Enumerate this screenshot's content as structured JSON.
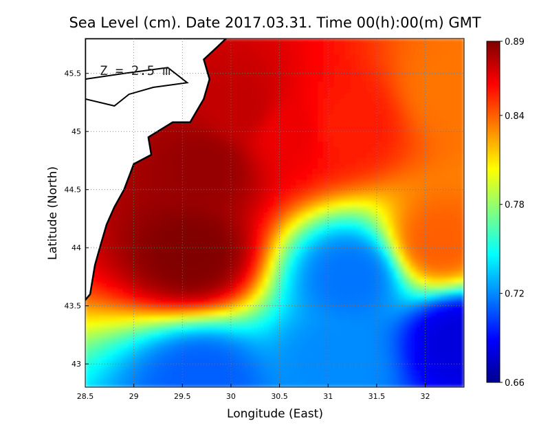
{
  "chart_data": {
    "type": "heatmap",
    "title": "Sea Level (cm). Date 2017.03.31. Time 00(h):00(m) GMT",
    "annotation": "Z = 2.5 m",
    "xlabel": "Longitude (East)",
    "ylabel": "Latitude (North)",
    "xlim": [
      28.5,
      32.4
    ],
    "ylim": [
      42.8,
      45.8
    ],
    "x_ticks": [
      "28.5",
      "29",
      "29.5",
      "30",
      "30.5",
      "31",
      "31.5",
      "32"
    ],
    "y_ticks": [
      "43",
      "43.5",
      "44",
      "44.5",
      "45",
      "45.5"
    ],
    "grid": true,
    "colorbar": {
      "min": 0.66,
      "max": 0.89,
      "ticks": [
        "0.89",
        "0.84",
        "0.78",
        "0.72",
        "0.66"
      ],
      "colors": [
        "#00008f",
        "#0000ff",
        "#0080ff",
        "#00ffff",
        "#80ff80",
        "#ffff00",
        "#ff8000",
        "#ff0000",
        "#800000"
      ]
    },
    "field_peaks": [
      {
        "x": 29.6,
        "y": 43.95,
        "value": 0.89
      },
      {
        "x": 29.75,
        "y": 44.7,
        "value": 0.885
      },
      {
        "x": 30.1,
        "y": 45.2,
        "value": 0.875
      },
      {
        "x": 30.6,
        "y": 45.0,
        "value": 0.865
      },
      {
        "x": 31.2,
        "y": 45.05,
        "value": 0.855
      },
      {
        "x": 31.25,
        "y": 43.75,
        "value": 0.715
      },
      {
        "x": 32.35,
        "y": 43.2,
        "value": 0.68
      },
      {
        "x": 29.7,
        "y": 42.85,
        "value": 0.71
      },
      {
        "x": 31.1,
        "y": 43.0,
        "value": 0.72
      },
      {
        "x": 32.15,
        "y": 44.05,
        "value": 0.84
      },
      {
        "x": 32.3,
        "y": 45.35,
        "value": 0.835
      }
    ]
  }
}
